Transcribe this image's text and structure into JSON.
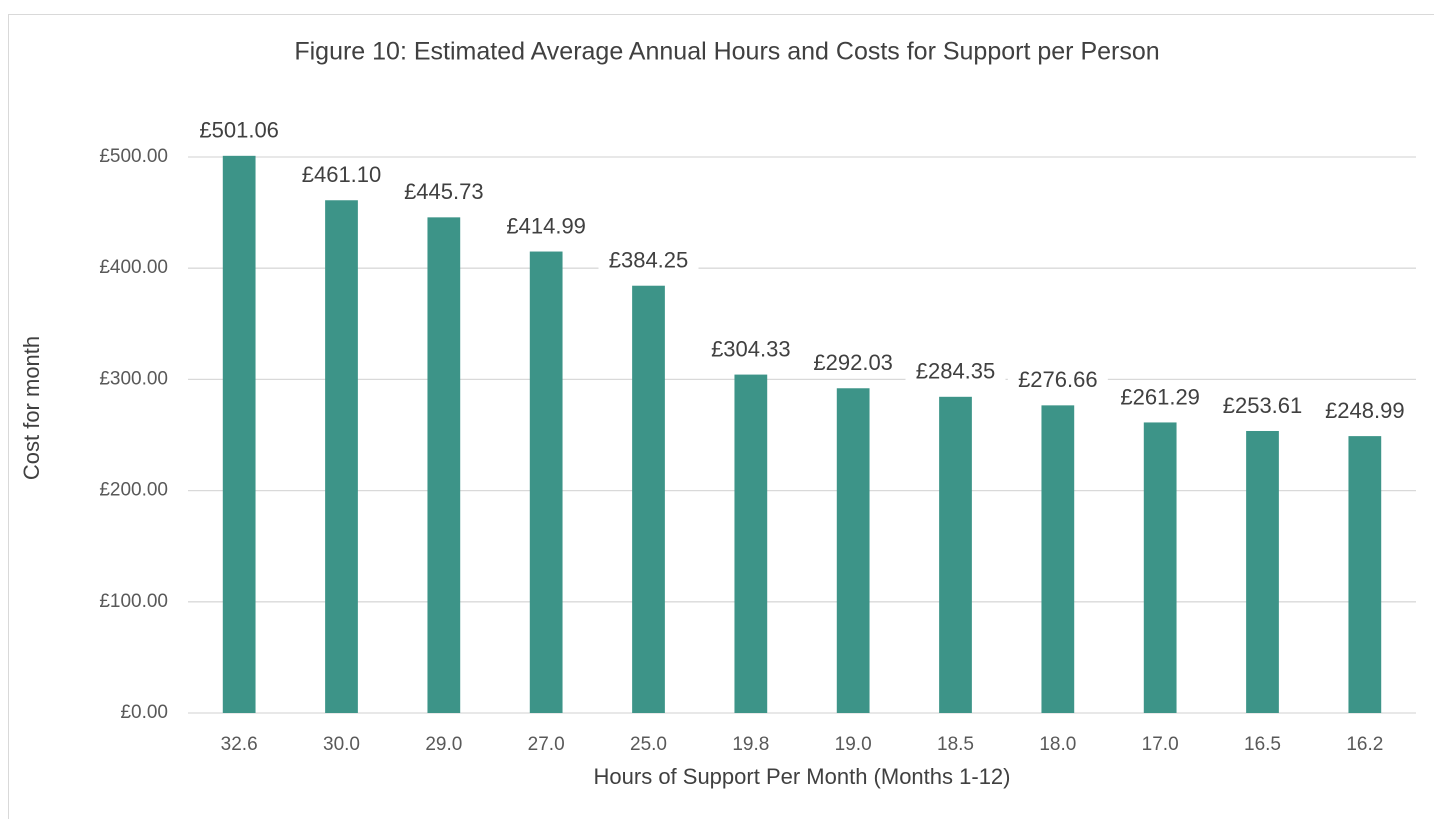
{
  "chart_data": {
    "type": "bar",
    "title": "Figure 10: Estimated Average Annual Hours and Costs for Support per Person",
    "x_label": "Hours of Support Per Month (Months 1-12)",
    "y_label": "Cost for month",
    "categories": [
      "32.6",
      "30.0",
      "29.0",
      "27.0",
      "25.0",
      "19.8",
      "19.0",
      "18.5",
      "18.0",
      "17.0",
      "16.5",
      "16.2"
    ],
    "values": [
      501.06,
      461.1,
      445.73,
      414.99,
      384.25,
      304.33,
      292.03,
      284.35,
      276.66,
      261.29,
      253.61,
      248.99
    ],
    "value_labels": [
      "£501.06",
      "£461.10",
      "£445.73",
      "£414.99",
      "£384.25",
      "£304.33",
      "£292.03",
      "£284.35",
      "£276.66",
      "£261.29",
      "£253.61",
      "£248.99"
    ],
    "color": "#3d9488",
    "ylim": [
      0,
      500
    ],
    "yticks": [
      {
        "value": 0,
        "label": "£0.00"
      },
      {
        "value": 100,
        "label": "£100.00"
      },
      {
        "value": 200,
        "label": "£200.00"
      },
      {
        "value": 300,
        "label": "£300.00"
      },
      {
        "value": 400,
        "label": "£400.00"
      },
      {
        "value": 500,
        "label": "£500.00"
      }
    ],
    "grid": true
  }
}
